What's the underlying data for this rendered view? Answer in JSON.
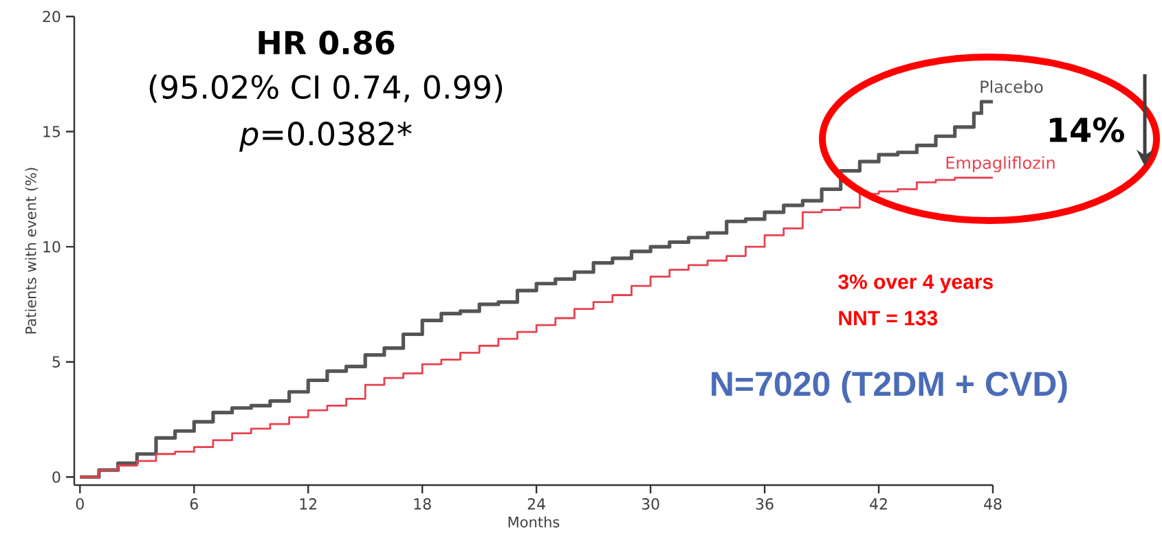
{
  "chart_data": {
    "type": "step",
    "xlabel": "Months",
    "ylabel": "Patients with event (%)",
    "xlim": [
      -0.3,
      48
    ],
    "ylim": [
      -0.35,
      20
    ],
    "xticks": [
      0,
      6,
      12,
      18,
      24,
      30,
      36,
      42,
      48
    ],
    "yticks": [
      0,
      5,
      10,
      15,
      20
    ],
    "series": [
      {
        "name": "Placebo",
        "color": "#555555",
        "x": [
          0,
          1,
          2,
          3,
          4,
          5,
          6,
          7,
          8,
          9,
          10,
          11,
          12,
          13,
          14,
          15,
          16,
          17,
          18,
          19,
          20,
          21,
          22,
          23,
          24,
          25,
          26,
          27,
          28,
          29,
          30,
          31,
          32,
          33,
          34,
          35,
          36,
          37,
          38,
          39,
          40,
          41,
          42,
          43,
          44,
          45,
          46,
          47,
          47.4,
          48
        ],
        "values": [
          0,
          0.3,
          0.6,
          1.0,
          1.7,
          2.0,
          2.4,
          2.8,
          3.0,
          3.1,
          3.3,
          3.7,
          4.2,
          4.6,
          4.8,
          5.3,
          5.6,
          6.2,
          6.8,
          7.1,
          7.2,
          7.5,
          7.6,
          8.1,
          8.4,
          8.6,
          8.9,
          9.3,
          9.5,
          9.8,
          10.0,
          10.2,
          10.4,
          10.6,
          11.1,
          11.2,
          11.5,
          11.8,
          12.0,
          12.5,
          13.3,
          13.7,
          14.0,
          14.1,
          14.4,
          14.8,
          15.2,
          15.8,
          16.3,
          16.3
        ]
      },
      {
        "name": "Empagliflozin",
        "color": "#e8414f",
        "x": [
          0,
          1,
          2,
          3,
          4,
          5,
          6,
          7,
          8,
          9,
          10,
          11,
          12,
          13,
          14,
          15,
          16,
          17,
          18,
          19,
          20,
          21,
          22,
          23,
          24,
          25,
          26,
          27,
          28,
          29,
          30,
          31,
          32,
          33,
          34,
          35,
          36,
          37,
          38,
          39,
          40,
          41,
          42,
          43,
          44,
          45,
          46,
          47,
          48
        ],
        "values": [
          0,
          0.3,
          0.5,
          0.7,
          1.0,
          1.1,
          1.3,
          1.6,
          1.9,
          2.1,
          2.3,
          2.6,
          2.9,
          3.1,
          3.4,
          4.0,
          4.3,
          4.5,
          4.9,
          5.1,
          5.4,
          5.7,
          6.0,
          6.3,
          6.6,
          6.9,
          7.3,
          7.6,
          7.9,
          8.3,
          8.7,
          9.0,
          9.2,
          9.4,
          9.6,
          10.0,
          10.5,
          10.8,
          11.5,
          11.6,
          11.7,
          12.3,
          12.4,
          12.5,
          12.8,
          12.9,
          13.0,
          13.0,
          13.0
        ]
      }
    ],
    "annotations": [
      "HR 0.86",
      "(95.02% CI 0.74, 0.99)",
      "*p*=0.0382*",
      "14%",
      "3% over 4 years",
      "NNT = 133",
      "N=7020 (T2DM + CVD)"
    ]
  }
}
